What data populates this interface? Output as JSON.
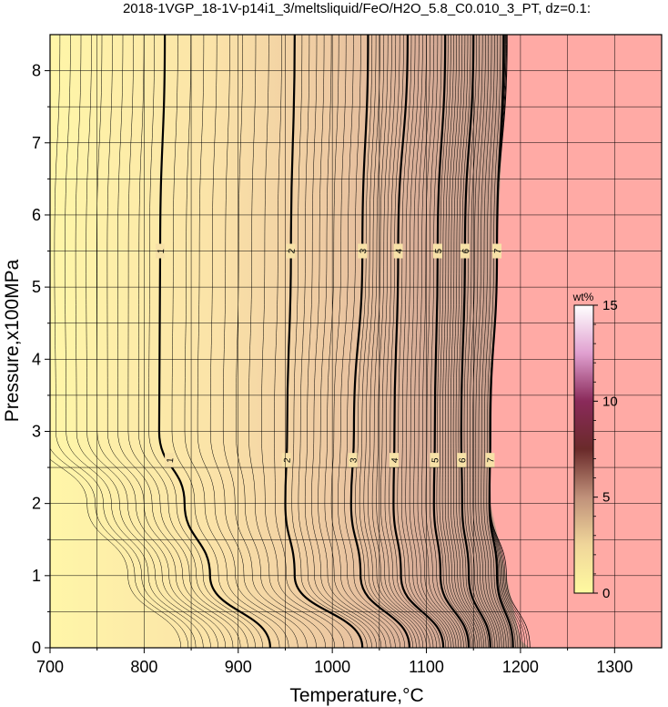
{
  "chart_data": {
    "type": "contour",
    "title": "2018-1VGP_18-1V-p14i1_3/meltsliquid/FeO/H2O_5.8_C0.010_3_PT, dz=0.1:",
    "xlabel": "Temperature,°C",
    "ylabel": "Pressure,x100MPa",
    "xlim": [
      700,
      1350
    ],
    "ylim": [
      0,
      8.5
    ],
    "xticks": [
      "700",
      "800",
      "900",
      "1000",
      "1100",
      "1200",
      "1300"
    ],
    "yticks": [
      "0",
      "1",
      "2",
      "3",
      "4",
      "5",
      "6",
      "7",
      "8"
    ],
    "grid": true,
    "contour_interval": 0.1,
    "labeled_contours": [
      {
        "level": "1",
        "points": [
          [
            934,
            0
          ],
          [
            870,
            1.0
          ],
          [
            816,
            3.0
          ],
          [
            817,
            5.5
          ],
          [
            822,
            8.5
          ]
        ]
      },
      {
        "level": "2",
        "points": [
          [
            1032,
            0
          ],
          [
            960,
            1.0
          ],
          [
            950,
            2.0
          ],
          [
            952,
            3.0
          ],
          [
            956,
            5.5
          ],
          [
            960,
            8.5
          ]
        ]
      },
      {
        "level": "3",
        "points": [
          [
            1082,
            0
          ],
          [
            1030,
            1.0
          ],
          [
            1020,
            2.0
          ],
          [
            1023,
            3.0
          ],
          [
            1032,
            5.5
          ],
          [
            1038,
            8.5
          ]
        ]
      },
      {
        "level": "4",
        "points": [
          [
            1118,
            0
          ],
          [
            1073,
            1.0
          ],
          [
            1065,
            2.0
          ],
          [
            1066,
            3.0
          ],
          [
            1070,
            5.5
          ],
          [
            1080,
            8.5
          ]
        ]
      },
      {
        "level": "5",
        "points": [
          [
            1145,
            0
          ],
          [
            1115,
            1.0
          ],
          [
            1108,
            2.0
          ],
          [
            1109,
            3.0
          ],
          [
            1112,
            5.5
          ],
          [
            1120,
            8.5
          ]
        ]
      },
      {
        "level": "6",
        "points": [
          [
            1168,
            0
          ],
          [
            1145,
            1.0
          ],
          [
            1138,
            2.0
          ],
          [
            1137,
            3.0
          ],
          [
            1141,
            5.5
          ],
          [
            1150,
            8.5
          ]
        ]
      },
      {
        "level": "7",
        "points": [
          [
            1192,
            0
          ],
          [
            1175,
            1.0
          ],
          [
            1167,
            2.0
          ],
          [
            1168,
            3.0
          ],
          [
            1175,
            5.5
          ],
          [
            1182,
            8.5
          ]
        ]
      }
    ],
    "liquidus_boundary": [
      [
        1210,
        0
      ],
      [
        1200,
        0.1
      ],
      [
        1185,
        1.0
      ],
      [
        1168,
        2.0
      ],
      [
        1167,
        3.0
      ],
      [
        1175,
        5.5
      ],
      [
        1186,
        8.5
      ]
    ],
    "colorbar": {
      "label": "wt%",
      "range": [
        0,
        15
      ],
      "ticks": [
        "0",
        "5",
        "10",
        "15"
      ],
      "colors": [
        "#fffaa0",
        "#f0d69a",
        "#c0917a",
        "#6a2a2a",
        "#8a2a5a",
        "#e0a0d0",
        "#ffffff"
      ]
    },
    "colors": {
      "background_low": "#fff6a8",
      "background_high": "#c39a8a",
      "above_liquidus": "#ffaaa5",
      "contour_line": "#000000",
      "grid": "#000000"
    }
  }
}
